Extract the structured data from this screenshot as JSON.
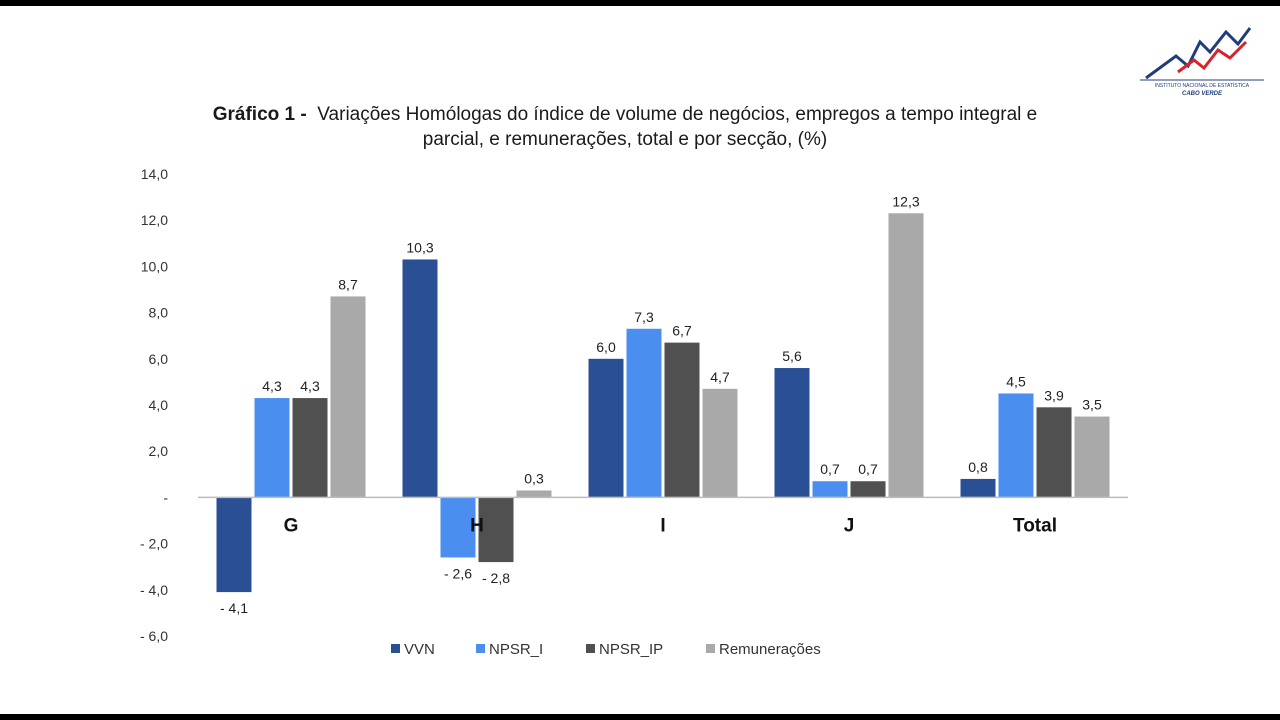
{
  "logo": {
    "text_top": "INSTITUTO NACIONAL DE ESTATÍSTICA",
    "text_bottom": "CABO VERDE"
  },
  "chart_data": {
    "type": "bar",
    "title_lead": "Gráfico 1 -",
    "title_line1": "Variações Homólogas do índice de volume de negócios, empregos a tempo integral e",
    "title_line2": "parcial, e remunerações, total e por secção, (%)",
    "xlabel": "",
    "ylabel": "",
    "categories": [
      "G",
      "H",
      "I",
      "J",
      "Total"
    ],
    "series": [
      {
        "name": "VVN",
        "color": "#2b4f94",
        "values": [
          -4.1,
          10.3,
          6.0,
          5.6,
          0.8
        ],
        "labels": [
          "- 4,1",
          "10,3",
          "6,0",
          "5,6",
          "0,8"
        ]
      },
      {
        "name": "NPSR_I",
        "color": "#4a8ff0",
        "values": [
          4.3,
          -2.6,
          7.3,
          0.7,
          4.5
        ],
        "labels": [
          "4,3",
          "- 2,6",
          "7,3",
          "0,7",
          "4,5"
        ]
      },
      {
        "name": "NPSR_IP",
        "color": "#505050",
        "values": [
          4.3,
          -2.8,
          6.7,
          0.7,
          3.9
        ],
        "labels": [
          "4,3",
          "- 2,8",
          "6,7",
          "0,7",
          "3,9"
        ]
      },
      {
        "name": "Remunerações",
        "color": "#a9a9a9",
        "values": [
          8.7,
          0.3,
          4.7,
          12.3,
          3.5
        ],
        "labels": [
          "8,7",
          "0,3",
          "4,7",
          "12,3",
          "3,5"
        ]
      }
    ],
    "ylim": [
      -6.0,
      14.0
    ],
    "yticks": [
      14.0,
      12.0,
      10.0,
      8.0,
      6.0,
      4.0,
      2.0,
      0,
      -2.0,
      -4.0,
      -6.0
    ],
    "ytick_labels": [
      "14,0",
      "12,0",
      "10,0",
      "8,0",
      "6,0",
      "4,0",
      "2,0",
      "-",
      "- 2,0",
      "- 4,0",
      "- 6,0"
    ],
    "grid": false,
    "legend_position": "bottom"
  }
}
